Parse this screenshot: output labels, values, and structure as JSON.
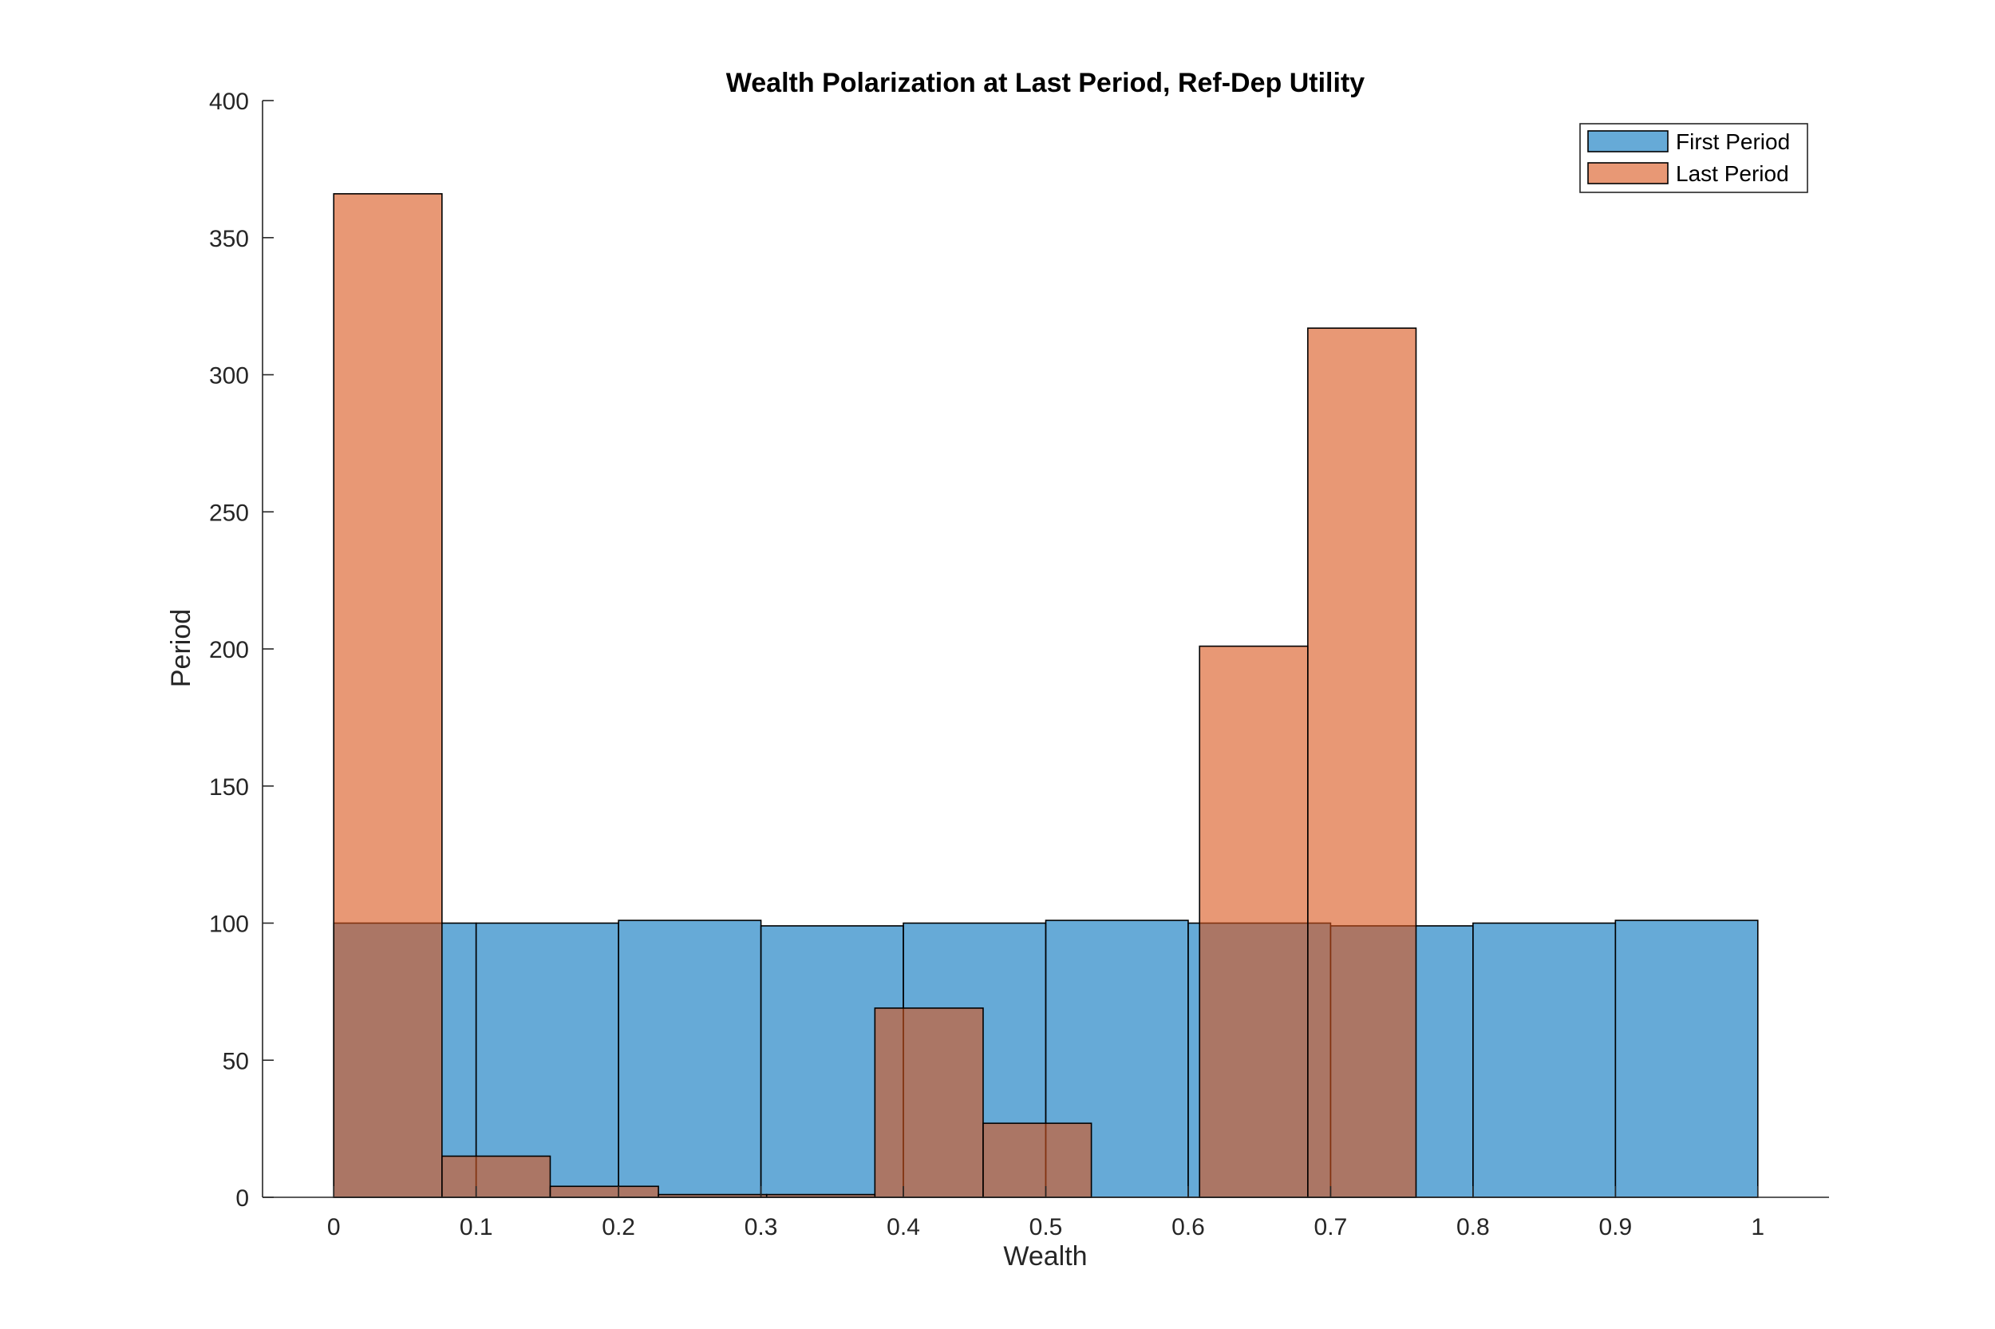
{
  "chart_data": {
    "type": "bar",
    "title": "Wealth Polarization at Last Period, Ref-Dep Utility",
    "xlabel": "Wealth",
    "ylabel": "Period",
    "xlim": [
      -0.05,
      1.05
    ],
    "ylim": [
      0,
      400
    ],
    "xticks": [
      "0",
      "0.1",
      "0.2",
      "0.3",
      "0.4",
      "0.5",
      "0.6",
      "0.7",
      "0.8",
      "0.9",
      "1"
    ],
    "yticks": [
      "0",
      "50",
      "100",
      "150",
      "200",
      "250",
      "300",
      "350",
      "400"
    ],
    "legend_position": "top-right",
    "grid": false,
    "series": [
      {
        "name": "First Period",
        "color": "#0072BD",
        "face_alpha": 0.6,
        "bins": [
          {
            "x0": 0.0,
            "x1": 0.1,
            "value": 100
          },
          {
            "x0": 0.1,
            "x1": 0.2,
            "value": 100
          },
          {
            "x0": 0.2,
            "x1": 0.3,
            "value": 101
          },
          {
            "x0": 0.3,
            "x1": 0.4,
            "value": 99
          },
          {
            "x0": 0.4,
            "x1": 0.5,
            "value": 100
          },
          {
            "x0": 0.5,
            "x1": 0.6,
            "value": 101
          },
          {
            "x0": 0.6,
            "x1": 0.7,
            "value": 100
          },
          {
            "x0": 0.7,
            "x1": 0.8,
            "value": 99
          },
          {
            "x0": 0.8,
            "x1": 0.9,
            "value": 100
          },
          {
            "x0": 0.9,
            "x1": 1.0,
            "value": 101
          }
        ]
      },
      {
        "name": "Last Period",
        "color": "#D95319",
        "face_alpha": 0.6,
        "bins": [
          {
            "x0": 0.0,
            "x1": 0.076,
            "value": 366
          },
          {
            "x0": 0.076,
            "x1": 0.152,
            "value": 15
          },
          {
            "x0": 0.152,
            "x1": 0.228,
            "value": 4
          },
          {
            "x0": 0.228,
            "x1": 0.304,
            "value": 1
          },
          {
            "x0": 0.304,
            "x1": 0.38,
            "value": 1
          },
          {
            "x0": 0.38,
            "x1": 0.456,
            "value": 69
          },
          {
            "x0": 0.456,
            "x1": 0.532,
            "value": 27
          },
          {
            "x0": 0.532,
            "x1": 0.608,
            "value": 0
          },
          {
            "x0": 0.608,
            "x1": 0.684,
            "value": 201
          },
          {
            "x0": 0.684,
            "x1": 0.76,
            "value": 317
          }
        ]
      }
    ]
  }
}
